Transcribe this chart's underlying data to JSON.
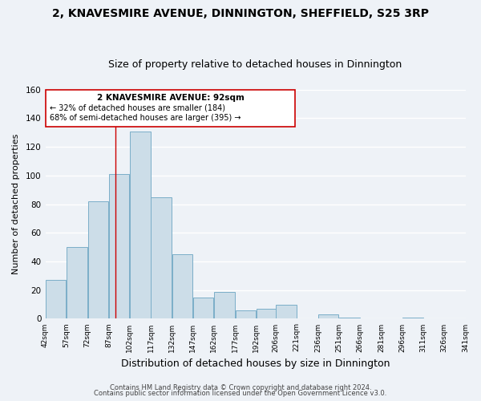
{
  "title": "2, KNAVESMIRE AVENUE, DINNINGTON, SHEFFIELD, S25 3RP",
  "subtitle": "Size of property relative to detached houses in Dinnington",
  "xlabel": "Distribution of detached houses by size in Dinnington",
  "ylabel": "Number of detached properties",
  "bar_values": [
    27,
    50,
    82,
    101,
    131,
    85,
    45,
    15,
    19,
    6,
    7,
    10,
    0,
    3,
    1,
    0,
    0,
    1,
    0,
    0
  ],
  "bin_labels": [
    "42sqm",
    "57sqm",
    "72sqm",
    "87sqm",
    "102sqm",
    "117sqm",
    "132sqm",
    "147sqm",
    "162sqm",
    "177sqm",
    "192sqm",
    "206sqm",
    "221sqm",
    "236sqm",
    "251sqm",
    "266sqm",
    "281sqm",
    "296sqm",
    "311sqm",
    "326sqm",
    "341sqm"
  ],
  "bar_color": "#ccdde8",
  "bar_edge_color": "#7aaec8",
  "marker_line_color": "#cc0000",
  "marker_value": 92,
  "ylim": [
    0,
    160
  ],
  "yticks": [
    0,
    20,
    40,
    60,
    80,
    100,
    120,
    140,
    160
  ],
  "annotation_title": "2 KNAVESMIRE AVENUE: 92sqm",
  "annotation_line1": "← 32% of detached houses are smaller (184)",
  "annotation_line2": "68% of semi-detached houses are larger (395) →",
  "annotation_box_color": "#ffffff",
  "annotation_box_edge": "#cc0000",
  "footer_line1": "Contains HM Land Registry data © Crown copyright and database right 2024.",
  "footer_line2": "Contains public sector information licensed under the Open Government Licence v3.0.",
  "background_color": "#eef2f7",
  "grid_color": "#ffffff",
  "title_fontsize": 10,
  "subtitle_fontsize": 9,
  "xlabel_fontsize": 9,
  "ylabel_fontsize": 8
}
